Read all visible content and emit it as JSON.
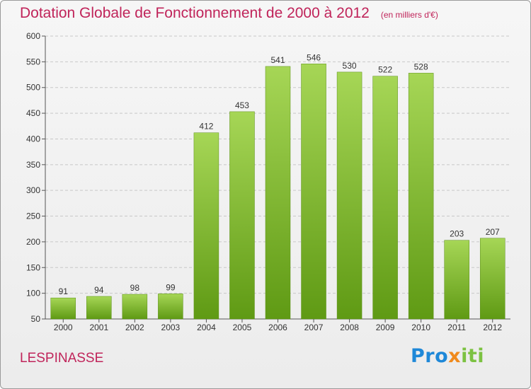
{
  "header": {
    "title": "Dotation Globale de Fonctionnement de 2000 à 2012",
    "unit": "(en milliers d'€)"
  },
  "footer": {
    "commune": "LESPINASSE",
    "logo": {
      "part1": "Pro",
      "part2": "x",
      "part3": "iti"
    }
  },
  "colors": {
    "title": "#c0245a",
    "bar_light": "#a6d656",
    "bar_dark": "#5f9a14",
    "grid": "#c8c8c8"
  },
  "chart_data": {
    "type": "bar",
    "title": "Dotation Globale de Fonctionnement de 2000 à 2012",
    "subtitle": "(en milliers d'€)",
    "categories": [
      "2000",
      "2001",
      "2002",
      "2003",
      "2004",
      "2005",
      "2006",
      "2007",
      "2008",
      "2009",
      "2010",
      "2011",
      "2012"
    ],
    "values": [
      91,
      94,
      98,
      99,
      412,
      453,
      541,
      546,
      530,
      522,
      528,
      203,
      207
    ],
    "ylim": [
      50,
      600
    ],
    "yticks": [
      50,
      100,
      150,
      200,
      250,
      300,
      350,
      400,
      450,
      500,
      550,
      600
    ],
    "grid": true,
    "data_labels": true
  }
}
